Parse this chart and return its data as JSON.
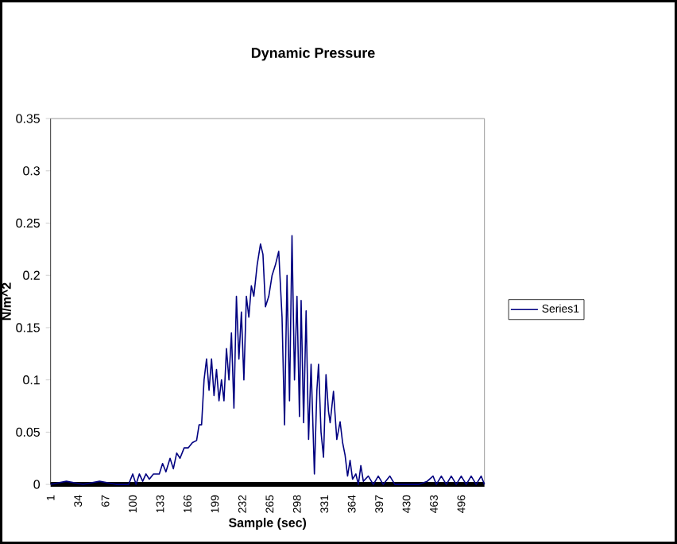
{
  "chart_data": {
    "type": "line",
    "title": "Dynamic Pressure",
    "xlabel": "Sample (sec)",
    "ylabel": "N/m^2",
    "xlim": [
      1,
      524
    ],
    "xticks": [
      1,
      34,
      67,
      100,
      133,
      166,
      199,
      232,
      265,
      298,
      331,
      364,
      397,
      430,
      463,
      496
    ],
    "ylim": [
      0,
      0.35
    ],
    "yticks": [
      0,
      0.05,
      0.1,
      0.15,
      0.2,
      0.25,
      0.3,
      0.35
    ],
    "grid": false,
    "legend": "right",
    "marker": "none",
    "line_style": "solid",
    "series": [
      {
        "name": "Series1",
        "color": "#000080",
        "x": [
          1,
          20,
          40,
          60,
          80,
          95,
          100,
          104,
          108,
          112,
          116,
          120,
          125,
          132,
          136,
          140,
          145,
          149,
          153,
          157,
          162,
          167,
          172,
          177,
          180,
          183,
          186,
          189,
          192,
          195,
          198,
          201,
          204,
          207,
          210,
          213,
          216,
          219,
          222,
          225,
          228,
          231,
          234,
          237,
          240,
          243,
          246,
          250,
          254,
          257,
          260,
          264,
          268,
          272,
          276,
          280,
          283,
          286,
          289,
          292,
          295,
          298,
          301,
          303,
          306,
          309,
          312,
          315,
          319,
          322,
          324,
          327,
          330,
          333,
          336,
          338,
          342,
          346,
          350,
          353,
          356,
          359,
          362,
          365,
          369,
          372,
          375,
          378,
          384,
          390,
          396,
          402,
          410,
          416,
          425,
          435,
          445,
          455,
          462,
          466,
          472,
          478,
          484,
          490,
          496,
          502,
          508,
          514,
          520,
          524
        ],
        "values": [
          0,
          0.003,
          0,
          0.003,
          0,
          0,
          0.01,
          0,
          0.01,
          0.003,
          0.01,
          0.005,
          0.01,
          0.01,
          0.02,
          0.012,
          0.025,
          0.015,
          0.03,
          0.025,
          0.035,
          0.035,
          0.04,
          0.042,
          0.057,
          0.057,
          0.1,
          0.12,
          0.09,
          0.12,
          0.085,
          0.11,
          0.08,
          0.1,
          0.08,
          0.13,
          0.1,
          0.145,
          0.073,
          0.18,
          0.12,
          0.165,
          0.1,
          0.18,
          0.16,
          0.19,
          0.18,
          0.21,
          0.23,
          0.22,
          0.17,
          0.18,
          0.2,
          0.21,
          0.223,
          0.16,
          0.057,
          0.2,
          0.08,
          0.238,
          0.1,
          0.18,
          0.065,
          0.176,
          0.059,
          0.166,
          0.043,
          0.115,
          0.01,
          0.09,
          0.115,
          0.05,
          0.026,
          0.105,
          0.07,
          0.059,
          0.089,
          0.043,
          0.06,
          0.04,
          0.028,
          0.008,
          0.023,
          0.005,
          0.01,
          0,
          0.018,
          0.003,
          0.008,
          0,
          0.008,
          0,
          0.008,
          0,
          0,
          0,
          0,
          0.003,
          0.008,
          0,
          0.008,
          0,
          0.008,
          0,
          0.008,
          0,
          0.008,
          0,
          0.008,
          0
        ]
      }
    ]
  }
}
